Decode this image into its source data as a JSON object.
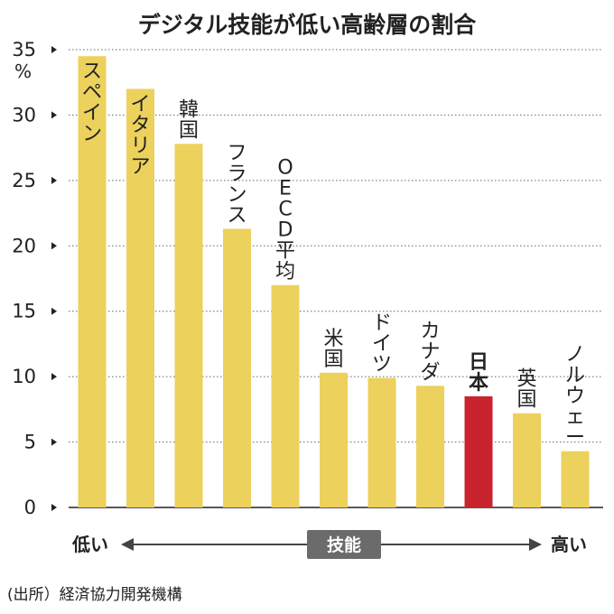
{
  "chart_data": {
    "type": "bar",
    "title": "デジタル技能が低い高齢層の割合",
    "unit": "%",
    "categories": [
      "スペイン",
      "イタリア",
      "韓国",
      "フランス",
      "OECD平均",
      "米国",
      "ドイツ",
      "カナダ",
      "日本",
      "英国",
      "ノルウェー"
    ],
    "values": [
      34.5,
      32.0,
      27.8,
      21.3,
      17.0,
      10.3,
      9.9,
      9.3,
      8.5,
      7.2,
      4.3
    ],
    "highlight": "日本",
    "ylim": [
      0,
      35
    ],
    "yticks": [
      0,
      5,
      10,
      15,
      20,
      25,
      30,
      35
    ],
    "grid": true,
    "bar_color": "#ecd15c",
    "highlight_color": "#c9232d",
    "axis_left_label": "低い",
    "axis_right_label": "高い",
    "axis_center_label": "技能",
    "source": "(出所）経済協力開発機構"
  }
}
